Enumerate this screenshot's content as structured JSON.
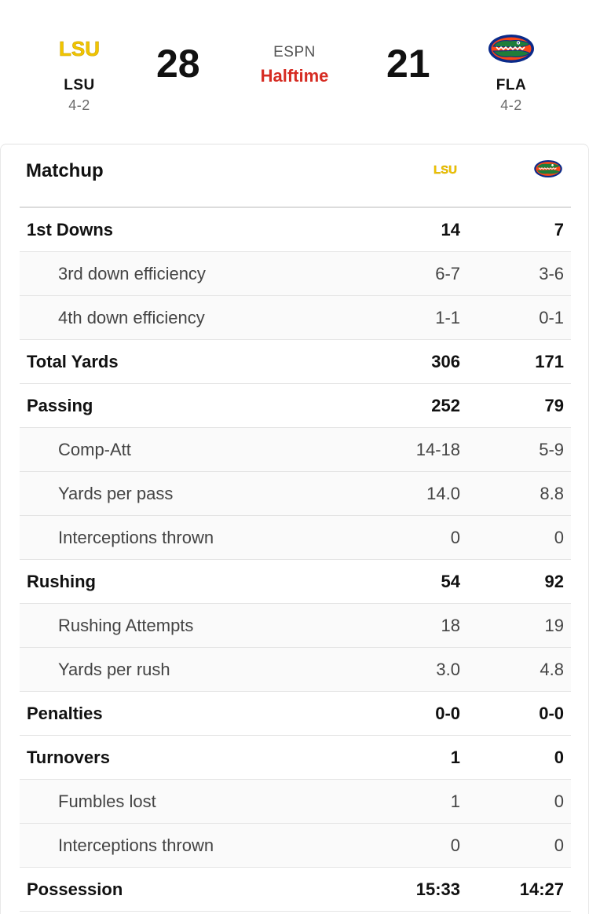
{
  "game": {
    "network": "ESPN",
    "status": "Halftime",
    "home": {
      "abbr": "LSU",
      "record": "4-2",
      "score": "28",
      "logo_text": "LSU",
      "logo_color": "#f1c500"
    },
    "away": {
      "abbr": "FLA",
      "record": "4-2",
      "score": "21",
      "logo_icon": "gator-logo-icon",
      "logo_color": "#0a2a8a",
      "accent_color": "#fa4616"
    }
  },
  "matchup": {
    "title": "Matchup",
    "rows": [
      {
        "label": "1st Downs",
        "lsu": "14",
        "fla": "7",
        "type": "main"
      },
      {
        "label": "3rd down efficiency",
        "lsu": "6-7",
        "fla": "3-6",
        "type": "sub"
      },
      {
        "label": "4th down efficiency",
        "lsu": "1-1",
        "fla": "0-1",
        "type": "sub"
      },
      {
        "label": "Total Yards",
        "lsu": "306",
        "fla": "171",
        "type": "main"
      },
      {
        "label": "Passing",
        "lsu": "252",
        "fla": "79",
        "type": "main"
      },
      {
        "label": "Comp-Att",
        "lsu": "14-18",
        "fla": "5-9",
        "type": "sub"
      },
      {
        "label": "Yards per pass",
        "lsu": "14.0",
        "fla": "8.8",
        "type": "sub"
      },
      {
        "label": "Interceptions thrown",
        "lsu": "0",
        "fla": "0",
        "type": "sub"
      },
      {
        "label": "Rushing",
        "lsu": "54",
        "fla": "92",
        "type": "main"
      },
      {
        "label": "Rushing Attempts",
        "lsu": "18",
        "fla": "19",
        "type": "sub"
      },
      {
        "label": "Yards per rush",
        "lsu": "3.0",
        "fla": "4.8",
        "type": "sub"
      },
      {
        "label": "Penalties",
        "lsu": "0-0",
        "fla": "0-0",
        "type": "main"
      },
      {
        "label": "Turnovers",
        "lsu": "1",
        "fla": "0",
        "type": "main"
      },
      {
        "label": "Fumbles lost",
        "lsu": "1",
        "fla": "0",
        "type": "sub"
      },
      {
        "label": "Interceptions thrown",
        "lsu": "0",
        "fla": "0",
        "type": "sub"
      },
      {
        "label": "Possession",
        "lsu": "15:33",
        "fla": "14:27",
        "type": "main"
      }
    ]
  }
}
